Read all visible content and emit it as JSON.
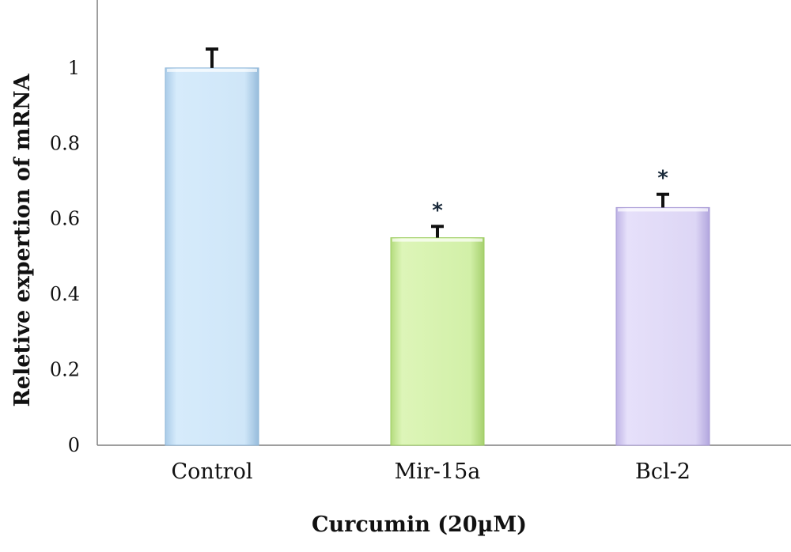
{
  "chart_data": {
    "type": "bar",
    "title": "",
    "xlabel": "Curcumin (20µM)",
    "ylabel": "Reletive expertion of mRNA",
    "categories": [
      "Control",
      "Mir-15a",
      "Bcl-2"
    ],
    "values": [
      1.0,
      0.55,
      0.63
    ],
    "error": [
      0.05,
      0.03,
      0.035
    ],
    "significance": [
      "",
      "*",
      "*"
    ],
    "yticks": [
      "0",
      "0.2",
      "0.4",
      "0.6",
      "0.8",
      "1"
    ],
    "ylim": [
      0,
      1.18
    ],
    "grid": false,
    "legend": "none",
    "colors": {
      "bars": [
        "#cfe6f8",
        "#d2f0a8",
        "#ddd6f5"
      ],
      "bar_edges": [
        "#8fb6d8",
        "#9ccc60",
        "#a99cd6"
      ],
      "error_bars": "#111111",
      "axis": "#7f7f7f",
      "significance": "#1a2a3a"
    }
  }
}
